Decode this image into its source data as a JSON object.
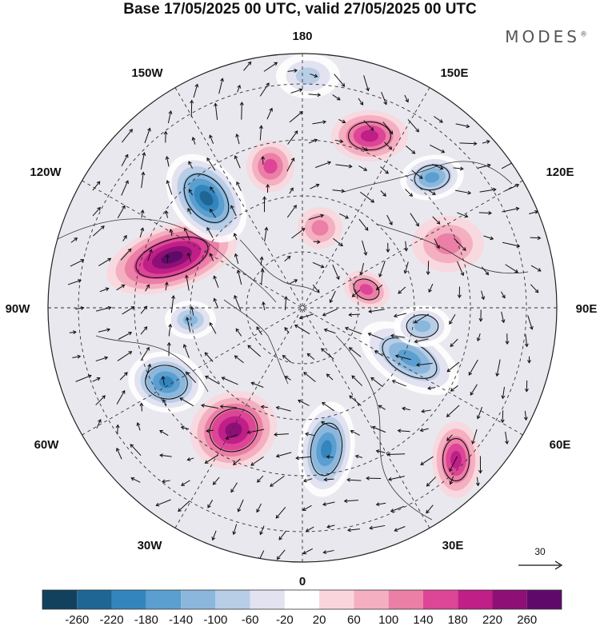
{
  "title": "Base 17/05/2025 00 UTC, valid 27/05/2025 00 UTC",
  "brand": "MODES",
  "brand_mark": "®",
  "longitude_labels": {
    "n180": "180",
    "e150": "150E",
    "e120": "120E",
    "e90": "90E",
    "e60": "60E",
    "e30": "30E",
    "s0": "0",
    "w30": "30W",
    "w60": "60W",
    "w90": "90W",
    "w120": "120W",
    "w150": "150W"
  },
  "reference_vector_label": "30",
  "colorbar": {
    "ticks": [
      "-260",
      "-220",
      "-180",
      "-140",
      "-100",
      "-60",
      "-20",
      "20",
      "60",
      "100",
      "140",
      "180",
      "220",
      "260"
    ],
    "colors": [
      "#12415e",
      "#1f6695",
      "#3386bd",
      "#5a9fcf",
      "#8bb7dd",
      "#b8cde6",
      "#e2e2f0",
      "#ffffff",
      "#f9d6dc",
      "#f4afc0",
      "#eb7fa6",
      "#dd4597",
      "#bf1f86",
      "#8e0f76",
      "#5f0a6b"
    ]
  },
  "anomaly_centers": [
    {
      "value": 240,
      "sign": "positive"
    },
    {
      "value": -240,
      "sign": "negative"
    },
    {
      "value": 200,
      "sign": "positive"
    },
    {
      "value": -200,
      "sign": "negative"
    },
    {
      "value": -180,
      "sign": "negative"
    },
    {
      "value": 160,
      "sign": "positive"
    },
    {
      "value": -160,
      "sign": "negative"
    },
    {
      "value": 140,
      "sign": "positive"
    },
    {
      "value": -140,
      "sign": "negative"
    },
    {
      "value": 120,
      "sign": "positive"
    },
    {
      "value": -120,
      "sign": "negative"
    },
    {
      "value": 100,
      "sign": "positive"
    },
    {
      "value": -100,
      "sign": "negative"
    },
    {
      "value": 80,
      "sign": "positive"
    },
    {
      "value": -80,
      "sign": "negative"
    },
    {
      "value": 60,
      "sign": "positive"
    }
  ]
}
